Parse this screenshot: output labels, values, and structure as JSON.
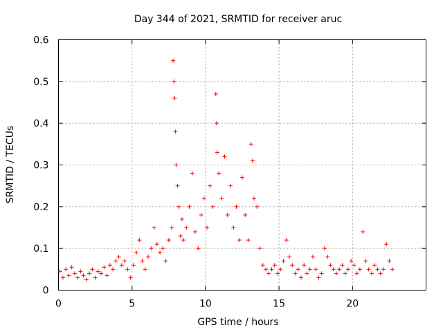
{
  "chart_data": {
    "type": "scatter",
    "title": "Day 344 of 2021, SRMTID for receiver aruc",
    "xlabel": "GPS time / hours",
    "ylabel": "SRMTID / TECUs",
    "xlim": [
      0,
      25
    ],
    "ylim": [
      0,
      0.6
    ],
    "xticks": [
      0,
      5,
      10,
      15,
      20
    ],
    "xtick_labels": [
      "0",
      "5",
      "10",
      "15",
      "20"
    ],
    "yticks": [
      0,
      0.1,
      0.2,
      0.3,
      0.4,
      0.5,
      0.6
    ],
    "ytick_labels": [
      "0",
      "0.1",
      "0.2",
      "0.3",
      "0.4",
      "0.5",
      "0.6"
    ],
    "grid": true,
    "marker": "+",
    "color": "#ff0000",
    "series": [
      {
        "name": "SRMTID",
        "points": [
          [
            0.1,
            0.045
          ],
          [
            0.3,
            0.03
          ],
          [
            0.5,
            0.05
          ],
          [
            0.7,
            0.035
          ],
          [
            0.9,
            0.055
          ],
          [
            1.1,
            0.04
          ],
          [
            1.3,
            0.03
          ],
          [
            1.5,
            0.045
          ],
          [
            1.7,
            0.035
          ],
          [
            1.9,
            0.025
          ],
          [
            2.1,
            0.04
          ],
          [
            2.3,
            0.05
          ],
          [
            2.5,
            0.03
          ],
          [
            2.7,
            0.045
          ],
          [
            2.9,
            0.04
          ],
          [
            3.1,
            0.055
          ],
          [
            3.3,
            0.035
          ],
          [
            3.5,
            0.06
          ],
          [
            3.7,
            0.05
          ],
          [
            3.9,
            0.07
          ],
          [
            4.1,
            0.08
          ],
          [
            4.3,
            0.06
          ],
          [
            4.5,
            0.07
          ],
          [
            4.7,
            0.05
          ],
          [
            4.9,
            0.03
          ],
          [
            5.1,
            0.06
          ],
          [
            5.3,
            0.09
          ],
          [
            5.5,
            0.12
          ],
          [
            5.7,
            0.07
          ],
          [
            5.9,
            0.05
          ],
          [
            6.1,
            0.08
          ],
          [
            6.3,
            0.1
          ],
          [
            6.5,
            0.15
          ],
          [
            6.7,
            0.11
          ],
          [
            6.9,
            0.09
          ],
          [
            7.1,
            0.1
          ],
          [
            7.3,
            0.07
          ],
          [
            7.5,
            0.12
          ],
          [
            7.7,
            0.15
          ],
          [
            7.8,
            0.55
          ],
          [
            7.85,
            0.5
          ],
          [
            7.9,
            0.46
          ],
          [
            7.95,
            0.38
          ],
          [
            8.0,
            0.3
          ],
          [
            8.1,
            0.25
          ],
          [
            8.2,
            0.2
          ],
          [
            8.3,
            0.13
          ],
          [
            8.4,
            0.17
          ],
          [
            8.5,
            0.12
          ],
          [
            8.7,
            0.15
          ],
          [
            8.9,
            0.2
          ],
          [
            9.1,
            0.28
          ],
          [
            9.3,
            0.14
          ],
          [
            9.5,
            0.1
          ],
          [
            9.7,
            0.18
          ],
          [
            9.9,
            0.22
          ],
          [
            10.1,
            0.15
          ],
          [
            10.3,
            0.25
          ],
          [
            10.5,
            0.2
          ],
          [
            10.7,
            0.47
          ],
          [
            10.75,
            0.4
          ],
          [
            10.8,
            0.33
          ],
          [
            10.9,
            0.28
          ],
          [
            11.1,
            0.22
          ],
          [
            11.3,
            0.32
          ],
          [
            11.5,
            0.18
          ],
          [
            11.7,
            0.25
          ],
          [
            11.9,
            0.15
          ],
          [
            12.1,
            0.2
          ],
          [
            12.3,
            0.12
          ],
          [
            12.5,
            0.27
          ],
          [
            12.7,
            0.18
          ],
          [
            12.9,
            0.12
          ],
          [
            13.1,
            0.35
          ],
          [
            13.2,
            0.31
          ],
          [
            13.3,
            0.22
          ],
          [
            13.5,
            0.2
          ],
          [
            13.7,
            0.1
          ],
          [
            13.9,
            0.06
          ],
          [
            14.1,
            0.05
          ],
          [
            14.3,
            0.04
          ],
          [
            14.5,
            0.05
          ],
          [
            14.7,
            0.06
          ],
          [
            14.9,
            0.04
          ],
          [
            15.1,
            0.05
          ],
          [
            15.3,
            0.07
          ],
          [
            15.5,
            0.12
          ],
          [
            15.7,
            0.08
          ],
          [
            15.9,
            0.06
          ],
          [
            16.1,
            0.04
          ],
          [
            16.3,
            0.05
          ],
          [
            16.5,
            0.03
          ],
          [
            16.7,
            0.06
          ],
          [
            16.9,
            0.04
          ],
          [
            17.1,
            0.05
          ],
          [
            17.3,
            0.08
          ],
          [
            17.5,
            0.05
          ],
          [
            17.7,
            0.03
          ],
          [
            17.9,
            0.04
          ],
          [
            18.1,
            0.1
          ],
          [
            18.3,
            0.08
          ],
          [
            18.5,
            0.06
          ],
          [
            18.7,
            0.05
          ],
          [
            18.9,
            0.04
          ],
          [
            19.1,
            0.05
          ],
          [
            19.3,
            0.06
          ],
          [
            19.5,
            0.04
          ],
          [
            19.7,
            0.05
          ],
          [
            19.9,
            0.07
          ],
          [
            20.1,
            0.06
          ],
          [
            20.3,
            0.04
          ],
          [
            20.5,
            0.05
          ],
          [
            20.7,
            0.14
          ],
          [
            20.9,
            0.07
          ],
          [
            21.1,
            0.05
          ],
          [
            21.3,
            0.04
          ],
          [
            21.5,
            0.06
          ],
          [
            21.7,
            0.05
          ],
          [
            21.9,
            0.04
          ],
          [
            22.1,
            0.05
          ],
          [
            22.3,
            0.11
          ],
          [
            22.5,
            0.07
          ],
          [
            22.7,
            0.05
          ]
        ]
      }
    ]
  }
}
